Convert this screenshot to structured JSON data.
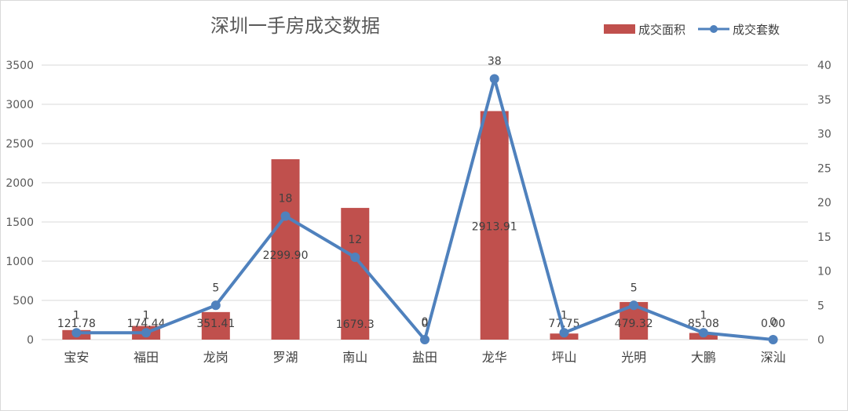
{
  "chart_data": {
    "type": "bar",
    "title": "深圳一手房成交数据",
    "categories": [
      "宝安",
      "福田",
      "龙岗",
      "罗湖",
      "南山",
      "盐田",
      "龙华",
      "坪山",
      "光明",
      "大鹏",
      "深汕"
    ],
    "series": [
      {
        "name": "成交面积",
        "type": "bar",
        "axis": "left",
        "color": "#C0504D",
        "values": [
          121.78,
          174.44,
          351.41,
          2299.9,
          1679.3,
          0,
          2913.91,
          77.75,
          479.32,
          85.08,
          0.0
        ],
        "labels": [
          "121.78",
          "174.44",
          "351.41",
          "2299.90",
          "1679.3",
          "0",
          "2913.91",
          "77.75",
          "479.32",
          "85.08",
          "0.00"
        ]
      },
      {
        "name": "成交套数",
        "type": "line",
        "axis": "right",
        "color": "#4F81BD",
        "values": [
          1,
          1,
          5,
          18,
          12,
          0,
          38,
          1,
          5,
          1,
          0
        ],
        "labels": [
          "1",
          "1",
          "5",
          "18",
          "12",
          "0",
          "38",
          "1",
          "5",
          "1",
          "0"
        ]
      }
    ],
    "y_left": {
      "min": 0,
      "max": 3500,
      "ticks": [
        "0",
        "500",
        "1000",
        "1500",
        "2000",
        "2500",
        "3000",
        "3500"
      ]
    },
    "y_right": {
      "min": 0,
      "max": 40,
      "ticks": [
        "0",
        "5",
        "10",
        "15",
        "20",
        "25",
        "30",
        "35",
        "40"
      ]
    },
    "grid": true,
    "legend": "top-right"
  }
}
